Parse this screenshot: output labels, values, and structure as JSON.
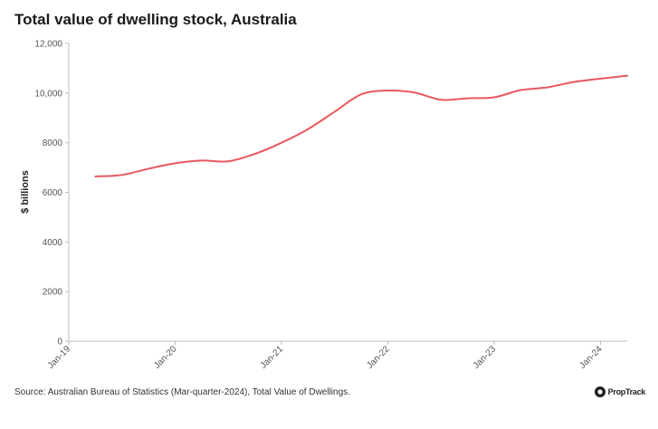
{
  "chart_data": {
    "type": "line",
    "title": "Total value of dwelling stock, Australia",
    "ylabel": "$ billions",
    "xlabel": "",
    "ylim": [
      0,
      12000
    ],
    "y_ticks": [
      "0",
      "2000",
      "4000",
      "6000",
      "8000",
      "10,000",
      "12,000"
    ],
    "y_tick_values": [
      0,
      2000,
      4000,
      6000,
      8000,
      10000,
      12000
    ],
    "x_ticks": [
      "Jan-19",
      "Jan-20",
      "Jan-21",
      "Jan-22",
      "Jan-23",
      "Jan-24"
    ],
    "x_tick_values": [
      0,
      4,
      8,
      12,
      16,
      20
    ],
    "x_range": [
      0,
      21
    ],
    "series": [
      {
        "name": "Total value of dwelling stock",
        "color": "#e8585e",
        "x": [
          1,
          2,
          3,
          4,
          5,
          6,
          7,
          8,
          9,
          10,
          11,
          12,
          13,
          14,
          15,
          16,
          17,
          18,
          19,
          20,
          21
        ],
        "values": [
          6640,
          6700,
          6950,
          7170,
          7280,
          7250,
          7550,
          8000,
          8550,
          9250,
          9950,
          10100,
          10020,
          9730,
          9790,
          9830,
          10120,
          10230,
          10450,
          10580,
          10700
        ]
      }
    ],
    "grid": false,
    "legend": "none"
  },
  "source": "Source: Australian Bureau of Statistics (Mar-quarter-2024), Total Value of Dwellings.",
  "brand": {
    "name": "PropTrack",
    "logo_icon": "proptrack-logo-icon"
  }
}
